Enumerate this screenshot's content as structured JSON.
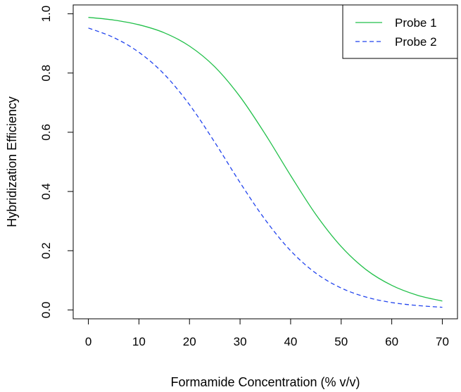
{
  "chart_data": {
    "type": "line",
    "title": "",
    "xlabel": "Formamide Concentration (% v/v)",
    "ylabel": "Hybridization Efficiency",
    "xlim": [
      -3,
      73
    ],
    "ylim": [
      -0.03,
      1.03
    ],
    "x_ticks": [
      0,
      10,
      20,
      30,
      40,
      50,
      60,
      70
    ],
    "y_ticks": [
      0.0,
      0.2,
      0.4,
      0.6,
      0.8,
      1.0
    ],
    "x_tick_labels": [
      "0",
      "10",
      "20",
      "30",
      "40",
      "50",
      "60",
      "70"
    ],
    "y_tick_labels": [
      "0.0",
      "0.2",
      "0.4",
      "0.6",
      "0.8",
      "1.0"
    ],
    "grid": false,
    "legend_position": "top-right",
    "x": [
      0,
      5,
      10,
      15,
      20,
      25,
      30,
      35,
      40,
      45,
      50,
      55,
      60,
      65,
      70
    ],
    "series": [
      {
        "name": "Probe 1",
        "color": "#22c04a",
        "style": "solid",
        "values": [
          0.988,
          0.979,
          0.963,
          0.936,
          0.891,
          0.821,
          0.72,
          0.593,
          0.454,
          0.322,
          0.214,
          0.135,
          0.083,
          0.05,
          0.03
        ]
      },
      {
        "name": "Probe 2",
        "color": "#2244ee",
        "style": "dashed",
        "values": [
          0.952,
          0.92,
          0.87,
          0.796,
          0.693,
          0.566,
          0.43,
          0.304,
          0.2,
          0.124,
          0.074,
          0.043,
          0.025,
          0.015,
          0.009
        ]
      }
    ]
  }
}
